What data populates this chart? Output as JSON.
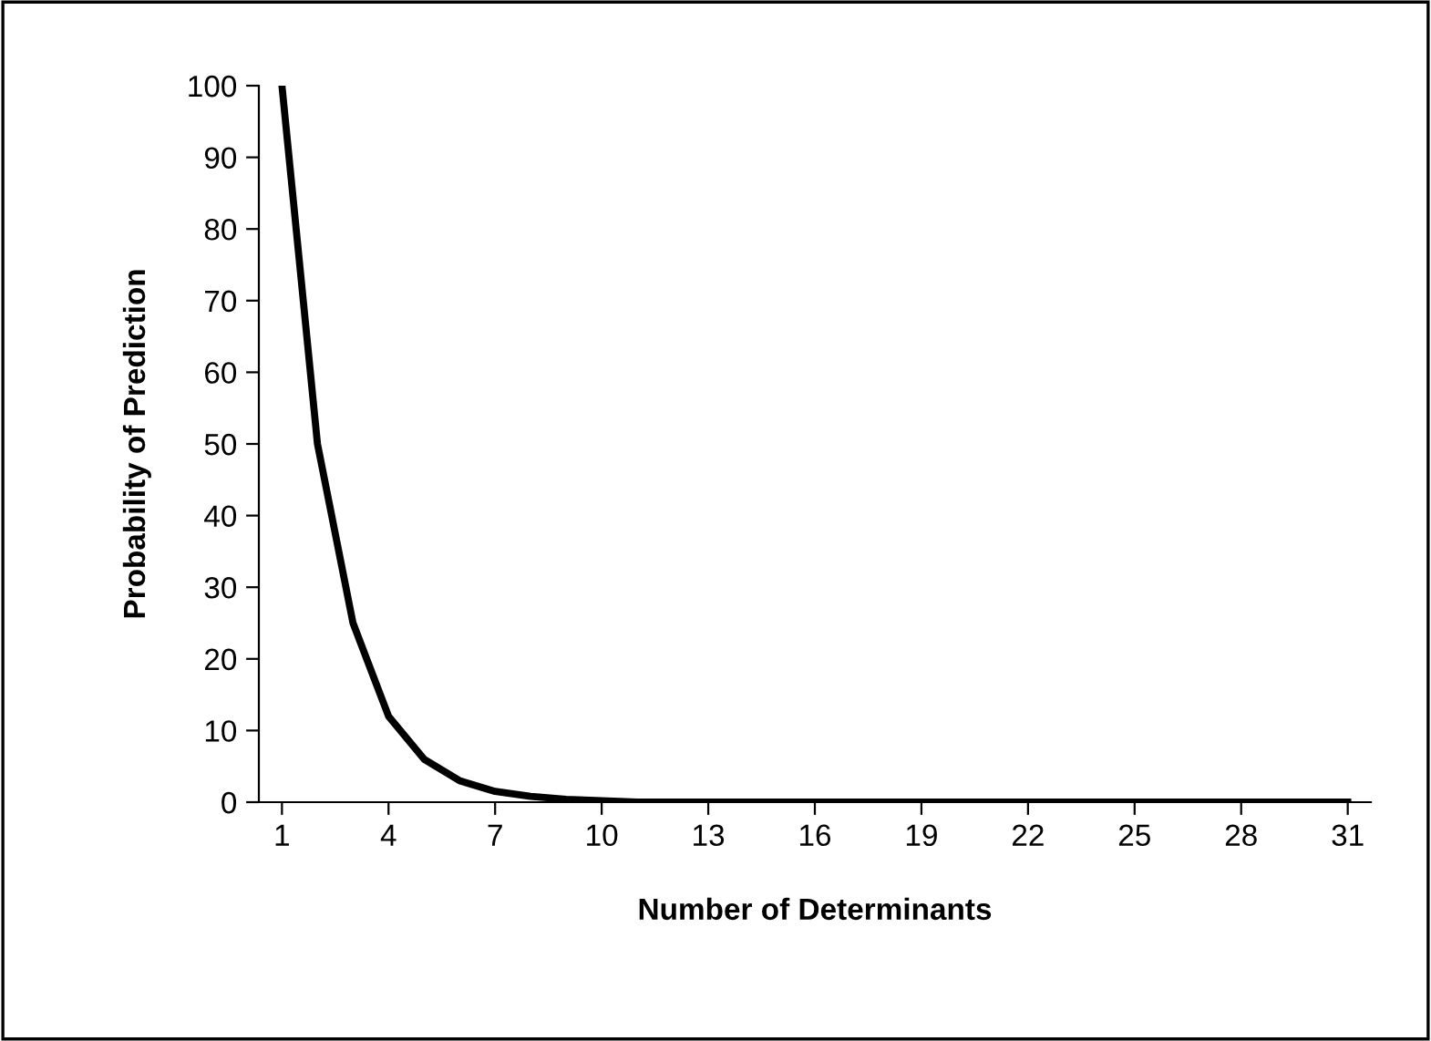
{
  "chart_data": {
    "type": "line",
    "xlabel": "Number of Determinants",
    "ylabel": "Probability of Prediction",
    "categories": [
      "1",
      null,
      null,
      "4",
      null,
      null,
      "7",
      null,
      null,
      "10",
      null,
      null,
      "13",
      null,
      null,
      "16",
      null,
      null,
      "19",
      null,
      null,
      "22",
      null,
      null,
      "25",
      null,
      null,
      "28",
      null,
      null,
      "31"
    ],
    "values": [
      100,
      50,
      25,
      12,
      6,
      3,
      1.5,
      0.8,
      0.4,
      0.2,
      0,
      0,
      0,
      0,
      0,
      0,
      0,
      0,
      0,
      0,
      0,
      0,
      0,
      0,
      0,
      0,
      0,
      0,
      0,
      0,
      0
    ],
    "color": "#000000",
    "ylim": [
      0,
      100
    ],
    "yticks": [
      0,
      10,
      20,
      30,
      40,
      50,
      60,
      70,
      80,
      90,
      100
    ],
    "grid": false,
    "marker": "none",
    "line_style": "solid"
  }
}
